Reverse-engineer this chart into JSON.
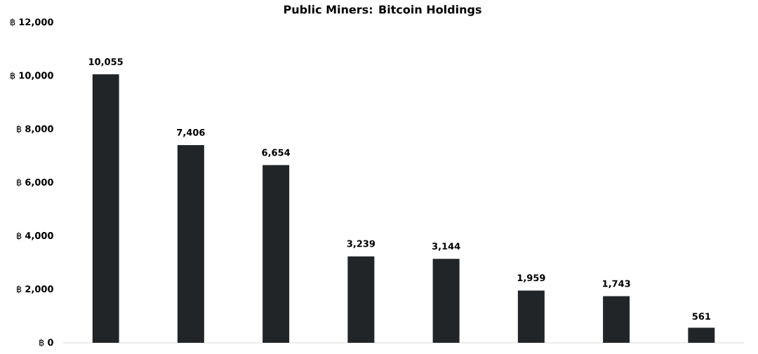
{
  "chart_data": {
    "type": "bar",
    "title": "Public Miners: Bitcoin Holdings",
    "categories": [
      null,
      null,
      null,
      null,
      null,
      null,
      null,
      null
    ],
    "values": [
      10055,
      7406,
      6654,
      3239,
      3144,
      1959,
      1743,
      561
    ],
    "value_labels": [
      "10,055",
      "7,406",
      "6,654",
      "3,239",
      "3,144",
      "1,959",
      "1,743",
      "561"
    ],
    "color": "#222527",
    "ylim": [
      0,
      12000
    ],
    "yticks": [
      {
        "value": 0,
        "label": "฿ **0**"
      },
      {
        "value": 2000,
        "label": "฿ **2,000**"
      },
      {
        "value": 4000,
        "label": "฿ **4,000**"
      },
      {
        "value": 6000,
        "label": "฿ **6,000**"
      },
      {
        "value": 8000,
        "label": "฿ **8,000**"
      },
      {
        "value": 10000,
        "label": "฿ **10,000**"
      },
      {
        "value": 12000,
        "label": "฿ **12,000**"
      }
    ]
  }
}
